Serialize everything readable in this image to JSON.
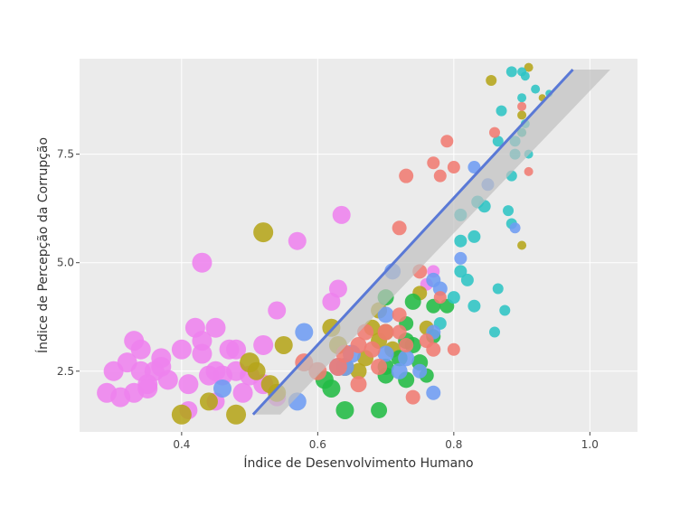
{
  "chart_data": {
    "type": "scatter",
    "title": "",
    "xlabel": "Índice de Desenvolvimento Humano",
    "ylabel": "Índice de Percepção da Corrupção",
    "xlim": [
      0.25,
      1.07
    ],
    "ylim": [
      1.1,
      9.7
    ],
    "grid": true,
    "x_ticks": [
      {
        "value": 0.4,
        "label": "0.4"
      },
      {
        "value": 0.6,
        "label": "0.6"
      },
      {
        "value": 0.8,
        "label": "0.8"
      },
      {
        "value": 1.0,
        "label": "1.0"
      }
    ],
    "y_ticks": [
      {
        "value": 2.5,
        "label": "2.5"
      },
      {
        "value": 5.0,
        "label": "5.0"
      },
      {
        "value": 7.5,
        "label": "7.5"
      }
    ],
    "colors": {
      "panel": "#ebebeb",
      "grid": "#ffffff",
      "trend": "#5a79d6",
      "band": "#c0c0c0"
    },
    "trend_line": {
      "x": [
        0.505,
        0.975
      ],
      "y": [
        1.5,
        9.45
      ]
    },
    "confidence_band": {
      "x": [
        0.505,
        0.975,
        1.03,
        0.545
      ],
      "y": [
        1.5,
        9.45,
        9.45,
        1.5
      ]
    },
    "series": [
      {
        "color": "#ee82ee",
        "points": [
          [
            0.29,
            2.0,
            11
          ],
          [
            0.3,
            2.5,
            11
          ],
          [
            0.32,
            2.7,
            11
          ],
          [
            0.33,
            3.2,
            11
          ],
          [
            0.33,
            2.0,
            11
          ],
          [
            0.34,
            3.0,
            11
          ],
          [
            0.34,
            2.5,
            11
          ],
          [
            0.35,
            2.2,
            11
          ],
          [
            0.36,
            2.5,
            11
          ],
          [
            0.37,
            2.8,
            11
          ],
          [
            0.38,
            2.3,
            11
          ],
          [
            0.35,
            2.1,
            11
          ],
          [
            0.31,
            1.9,
            11
          ],
          [
            0.37,
            2.6,
            11
          ],
          [
            0.4,
            3.0,
            11
          ],
          [
            0.41,
            2.2,
            11
          ],
          [
            0.42,
            3.5,
            11
          ],
          [
            0.43,
            3.2,
            11
          ],
          [
            0.43,
            2.9,
            11
          ],
          [
            0.44,
            2.4,
            11
          ],
          [
            0.45,
            2.5,
            11
          ],
          [
            0.45,
            3.5,
            11
          ],
          [
            0.43,
            5.0,
            11
          ],
          [
            0.46,
            2.4,
            11
          ],
          [
            0.47,
            3.0,
            11
          ],
          [
            0.48,
            2.5,
            11
          ],
          [
            0.48,
            3.0,
            11
          ],
          [
            0.49,
            2.0,
            11
          ],
          [
            0.5,
            2.4,
            11
          ],
          [
            0.52,
            3.1,
            11
          ],
          [
            0.52,
            2.2,
            11
          ],
          [
            0.54,
            1.9,
            10
          ],
          [
            0.54,
            3.9,
            10
          ],
          [
            0.57,
            5.5,
            10
          ],
          [
            0.62,
            4.1,
            10
          ],
          [
            0.63,
            4.4,
            10
          ],
          [
            0.635,
            6.1,
            10
          ],
          [
            0.41,
            1.6,
            10
          ],
          [
            0.45,
            1.8,
            10
          ],
          [
            0.77,
            4.8,
            7
          ],
          [
            0.76,
            4.5,
            7
          ]
        ]
      },
      {
        "color": "#b5a51a",
        "points": [
          [
            0.4,
            1.5,
            11
          ],
          [
            0.48,
            1.5,
            11
          ],
          [
            0.5,
            2.7,
            11
          ],
          [
            0.52,
            5.7,
            11
          ],
          [
            0.55,
            3.1,
            10
          ],
          [
            0.62,
            3.5,
            10
          ],
          [
            0.63,
            3.1,
            10
          ],
          [
            0.64,
            2.6,
            10
          ],
          [
            0.66,
            2.5,
            9
          ],
          [
            0.67,
            2.8,
            9
          ],
          [
            0.68,
            3.5,
            9
          ],
          [
            0.69,
            3.9,
            9
          ],
          [
            0.69,
            3.2,
            9
          ],
          [
            0.7,
            3.4,
            9
          ],
          [
            0.71,
            3.0,
            9
          ],
          [
            0.75,
            4.3,
            8
          ],
          [
            0.76,
            3.5,
            8
          ],
          [
            0.53,
            2.2,
            10
          ],
          [
            0.54,
            2.0,
            10
          ],
          [
            0.51,
            2.5,
            10
          ],
          [
            0.44,
            1.8,
            10
          ],
          [
            0.855,
            9.2,
            6
          ],
          [
            0.9,
            5.4,
            5
          ],
          [
            0.9,
            8.4,
            5
          ],
          [
            0.9,
            8.0,
            5
          ],
          [
            0.91,
            9.5,
            5
          ],
          [
            0.93,
            8.8,
            4
          ]
        ]
      },
      {
        "color": "#22bb44",
        "points": [
          [
            0.61,
            2.3,
            10
          ],
          [
            0.62,
            2.1,
            10
          ],
          [
            0.64,
            1.6,
            10
          ],
          [
            0.69,
            1.6,
            9
          ],
          [
            0.7,
            2.6,
            9
          ],
          [
            0.7,
            4.2,
            9
          ],
          [
            0.7,
            2.4,
            9
          ],
          [
            0.72,
            2.8,
            9
          ],
          [
            0.73,
            2.3,
            9
          ],
          [
            0.73,
            3.2,
            9
          ],
          [
            0.74,
            3.1,
            9
          ],
          [
            0.74,
            4.1,
            9
          ],
          [
            0.75,
            2.7,
            9
          ],
          [
            0.76,
            2.4,
            8
          ],
          [
            0.77,
            3.3,
            8
          ],
          [
            0.77,
            4.0,
            8
          ],
          [
            0.79,
            4.0,
            8
          ],
          [
            0.73,
            3.6,
            8
          ]
        ]
      },
      {
        "color": "#2ec4c4",
        "points": [
          [
            0.78,
            3.6,
            7
          ],
          [
            0.8,
            4.2,
            7
          ],
          [
            0.81,
            4.8,
            7
          ],
          [
            0.81,
            6.1,
            7
          ],
          [
            0.81,
            5.5,
            7
          ],
          [
            0.82,
            4.6,
            7
          ],
          [
            0.83,
            5.6,
            7
          ],
          [
            0.83,
            4.0,
            7
          ],
          [
            0.835,
            6.4,
            7
          ],
          [
            0.845,
            6.3,
            7
          ],
          [
            0.86,
            3.4,
            6
          ],
          [
            0.865,
            4.4,
            6
          ],
          [
            0.865,
            7.8,
            6
          ],
          [
            0.87,
            8.5,
            6
          ],
          [
            0.875,
            3.9,
            6
          ],
          [
            0.88,
            6.2,
            6
          ],
          [
            0.885,
            7.0,
            6
          ],
          [
            0.885,
            5.9,
            6
          ],
          [
            0.89,
            7.5,
            6
          ],
          [
            0.89,
            7.8,
            6
          ],
          [
            0.885,
            9.4,
            6
          ],
          [
            0.9,
            9.4,
            5
          ],
          [
            0.905,
            9.3,
            5
          ],
          [
            0.9,
            8.8,
            5
          ],
          [
            0.905,
            8.2,
            5
          ],
          [
            0.9,
            8.0,
            5
          ],
          [
            0.91,
            7.5,
            5
          ],
          [
            0.92,
            9.0,
            5
          ],
          [
            0.94,
            8.9,
            4
          ]
        ]
      },
      {
        "color": "#6e9cf2",
        "points": [
          [
            0.57,
            1.8,
            10
          ],
          [
            0.58,
            3.4,
            10
          ],
          [
            0.63,
            2.6,
            10
          ],
          [
            0.64,
            2.6,
            10
          ],
          [
            0.65,
            2.9,
            10
          ],
          [
            0.7,
            3.8,
            9
          ],
          [
            0.7,
            2.9,
            9
          ],
          [
            0.71,
            4.8,
            9
          ],
          [
            0.72,
            2.5,
            9
          ],
          [
            0.73,
            2.8,
            9
          ],
          [
            0.75,
            2.5,
            8
          ],
          [
            0.77,
            2.0,
            8
          ],
          [
            0.77,
            3.4,
            8
          ],
          [
            0.77,
            4.6,
            8
          ],
          [
            0.78,
            4.4,
            8
          ],
          [
            0.81,
            5.1,
            7
          ],
          [
            0.83,
            7.2,
            7
          ],
          [
            0.85,
            6.8,
            7
          ],
          [
            0.89,
            5.8,
            6
          ],
          [
            0.46,
            2.1,
            10
          ]
        ]
      },
      {
        "color": "#f07b72",
        "points": [
          [
            0.58,
            2.7,
            10
          ],
          [
            0.6,
            2.5,
            10
          ],
          [
            0.63,
            2.6,
            10
          ],
          [
            0.64,
            2.9,
            10
          ],
          [
            0.66,
            2.2,
            9
          ],
          [
            0.66,
            3.1,
            9
          ],
          [
            0.67,
            3.4,
            9
          ],
          [
            0.68,
            3.0,
            9
          ],
          [
            0.69,
            2.6,
            9
          ],
          [
            0.7,
            3.4,
            9
          ],
          [
            0.72,
            3.8,
            8
          ],
          [
            0.72,
            3.4,
            8
          ],
          [
            0.72,
            5.8,
            8
          ],
          [
            0.73,
            7.0,
            8
          ],
          [
            0.73,
            3.1,
            8
          ],
          [
            0.74,
            1.9,
            8
          ],
          [
            0.75,
            4.8,
            8
          ],
          [
            0.76,
            3.2,
            8
          ],
          [
            0.77,
            3.0,
            8
          ],
          [
            0.77,
            7.3,
            7
          ],
          [
            0.78,
            7.0,
            7
          ],
          [
            0.79,
            7.8,
            7
          ],
          [
            0.8,
            3.0,
            7
          ],
          [
            0.8,
            7.2,
            7
          ],
          [
            0.78,
            4.2,
            7
          ],
          [
            0.86,
            8.0,
            6
          ],
          [
            0.9,
            8.6,
            5
          ],
          [
            0.91,
            7.1,
            5
          ]
        ]
      }
    ]
  }
}
